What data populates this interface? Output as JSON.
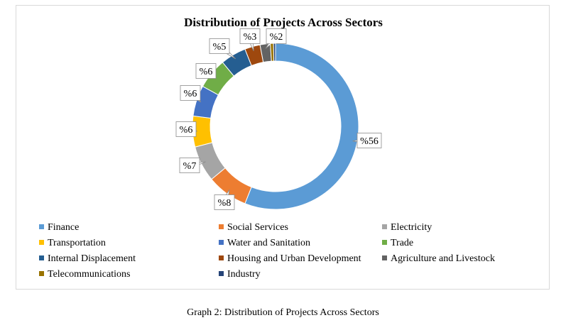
{
  "chart_data": {
    "type": "pie",
    "subtype": "donut",
    "title": "Distribution of Projects Across Sectors",
    "slices": [
      {
        "name": "Finance",
        "value": 56,
        "label": "%56",
        "color": "#5b9bd5"
      },
      {
        "name": "Social Services",
        "value": 8,
        "label": "%8",
        "color": "#ed7d31"
      },
      {
        "name": "Electricity",
        "value": 7,
        "label": "%7",
        "color": "#a5a5a5"
      },
      {
        "name": "Transportation",
        "value": 6,
        "label": "%6",
        "color": "#ffc000"
      },
      {
        "name": "Water and Sanitation",
        "value": 6,
        "label": "%6",
        "color": "#4472c4"
      },
      {
        "name": "Trade",
        "value": 6,
        "label": "%6",
        "color": "#70ad47"
      },
      {
        "name": "Internal Displacement",
        "value": 5,
        "label": "%5",
        "color": "#255e91"
      },
      {
        "name": "Housing and Urban Development",
        "value": 3,
        "label": "%3",
        "color": "#9e480e"
      },
      {
        "name": "Agriculture and Livestock",
        "value": 2,
        "label": "%2",
        "color": "#636363"
      },
      {
        "name": "Telecommunications",
        "value": 0.6,
        "label": "",
        "color": "#997300"
      },
      {
        "name": "Industry",
        "value": 0.4,
        "label": "",
        "color": "#264478"
      }
    ],
    "legend_position": "bottom"
  },
  "caption": "Graph 2: Distribution of Projects Across Sectors"
}
